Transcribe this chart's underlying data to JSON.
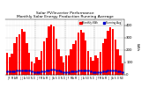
{
  "title": "Solar PV/Inverter Performance\nMonthly Solar Energy Production Running Average",
  "title_fontsize": 3.2,
  "bar_color": "#ff0000",
  "avg_color": "#0000cd",
  "background_color": "#ffffff",
  "grid_color": "#888888",
  "ylabel_right": "kWh",
  "ylabel_fontsize": 3.0,
  "n_bars": 48,
  "values": [
    180,
    140,
    170,
    260,
    310,
    330,
    370,
    350,
    260,
    180,
    110,
    90,
    140,
    120,
    190,
    270,
    300,
    390,
    410,
    390,
    290,
    210,
    150,
    100,
    160,
    155,
    210,
    250,
    275,
    340,
    365,
    345,
    275,
    195,
    145,
    115,
    155,
    135,
    185,
    255,
    295,
    360,
    385,
    370,
    285,
    205,
    155,
    95
  ],
  "avg_values": [
    30,
    28,
    30,
    32,
    34,
    36,
    38,
    38,
    36,
    34,
    30,
    25,
    25,
    23,
    26,
    30,
    33,
    37,
    40,
    41,
    38,
    34,
    29,
    24,
    24,
    23,
    27,
    30,
    32,
    36,
    38,
    39,
    37,
    33,
    28,
    23,
    23,
    22,
    25,
    29,
    32,
    35,
    38,
    39,
    36,
    32,
    27,
    22
  ],
  "ylim": [
    0,
    450
  ],
  "ytick_values": [
    0,
    100,
    200,
    300,
    400
  ],
  "ytick_labels": [
    "0",
    "100",
    "200",
    "300",
    "400"
  ],
  "xtick_positions": [
    0,
    1,
    2,
    3,
    4,
    5,
    6,
    7,
    8,
    9,
    10,
    11,
    12,
    13,
    14,
    15,
    16,
    17,
    18,
    19,
    20,
    21,
    22,
    23,
    24,
    25,
    26,
    27,
    28,
    29,
    30,
    31,
    32,
    33,
    34,
    35,
    36,
    37,
    38,
    39,
    40,
    41,
    42,
    43,
    44,
    45,
    46,
    47
  ],
  "xtick_labels": [
    "J",
    "F",
    "M",
    "A",
    "M",
    "J",
    "J",
    "A",
    "S",
    "O",
    "N",
    "D",
    "J",
    "F",
    "M",
    "A",
    "M",
    "J",
    "J",
    "A",
    "S",
    "O",
    "N",
    "D",
    "J",
    "F",
    "M",
    "A",
    "M",
    "J",
    "J",
    "A",
    "S",
    "O",
    "N",
    "D",
    "J",
    "F",
    "M",
    "A",
    "M",
    "J",
    "J",
    "A",
    "S",
    "O",
    "N",
    "D"
  ]
}
